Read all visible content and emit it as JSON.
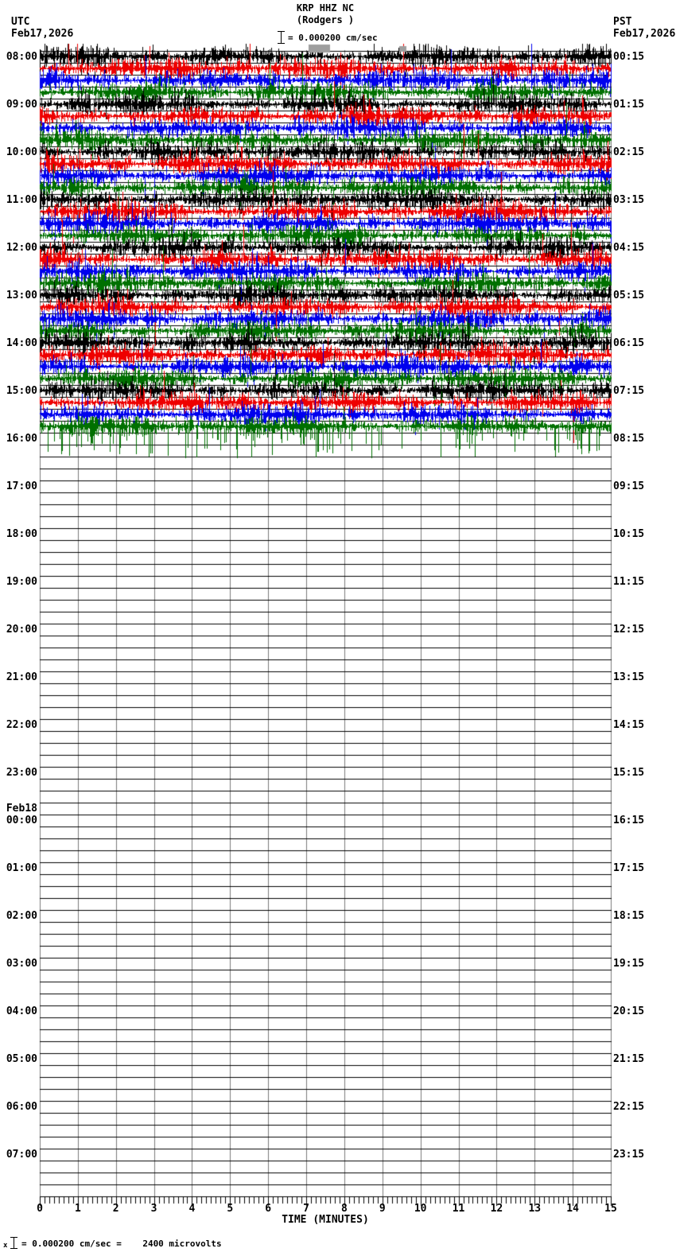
{
  "header": {
    "title": "KRP HHZ NC",
    "subtitle": "(Rodgers )",
    "scale_label": "= 0.000200 cm/sec",
    "left_tz": "UTC",
    "left_date": "Feb17,2026",
    "right_tz": "PST",
    "right_date": "Feb17,2026"
  },
  "footer": {
    "axis_title": "TIME (MINUTES)",
    "note_prefix": "x",
    "note_text": "= 0.000200 cm/sec =    2400 microvolts"
  },
  "chart_data": {
    "type": "line",
    "chart_kind": "seismogram-helicorder",
    "station_code": "KRP HHZ NC",
    "station_name": "(Rodgers )",
    "amplitude_scale": "0.000200 cm/sec = 2400 microvolts",
    "xlabel": "TIME (MINUTES)",
    "x_tick_labels": [
      "0",
      "1",
      "2",
      "3",
      "4",
      "5",
      "6",
      "7",
      "8",
      "9",
      "10",
      "11",
      "12",
      "13",
      "14",
      "15"
    ],
    "minutes_per_line": 15,
    "minor_ticks_per_minute": 8,
    "rows_per_hour": 4,
    "row_count": 96,
    "filled_row_count": 32,
    "filled_utc_range": "08:00 Feb17 - 16:00 Feb17 (continuous saturated signal)",
    "empty_utc_range": "16:00 Feb17 - 08:00 Feb18 (no data, blank grid)",
    "utc_hour_labels": [
      "08:00",
      "09:00",
      "10:00",
      "11:00",
      "12:00",
      "13:00",
      "14:00",
      "15:00",
      "16:00",
      "17:00",
      "18:00",
      "19:00",
      "20:00",
      "21:00",
      "22:00",
      "23:00",
      "Feb18\n00:00",
      "01:00",
      "02:00",
      "03:00",
      "04:00",
      "05:00",
      "06:00",
      "07:00"
    ],
    "pst_hour_labels": [
      "00:15",
      "01:15",
      "02:15",
      "03:15",
      "04:15",
      "05:15",
      "06:15",
      "07:15",
      "08:15",
      "09:15",
      "10:15",
      "11:15",
      "12:15",
      "13:15",
      "14:15",
      "15:15",
      "16:15",
      "17:15",
      "18:15",
      "19:15",
      "20:15",
      "21:15",
      "22:15",
      "23:15"
    ],
    "trace_color_cycle": [
      "#000000",
      "#ee0000",
      "#0000ee",
      "#007000"
    ],
    "grid_vertical_color": "#7a7a7a",
    "grid_horizontal_color": "#000000",
    "clip_marker_color": "#9e9e9e",
    "background_color": "#ffffff"
  }
}
